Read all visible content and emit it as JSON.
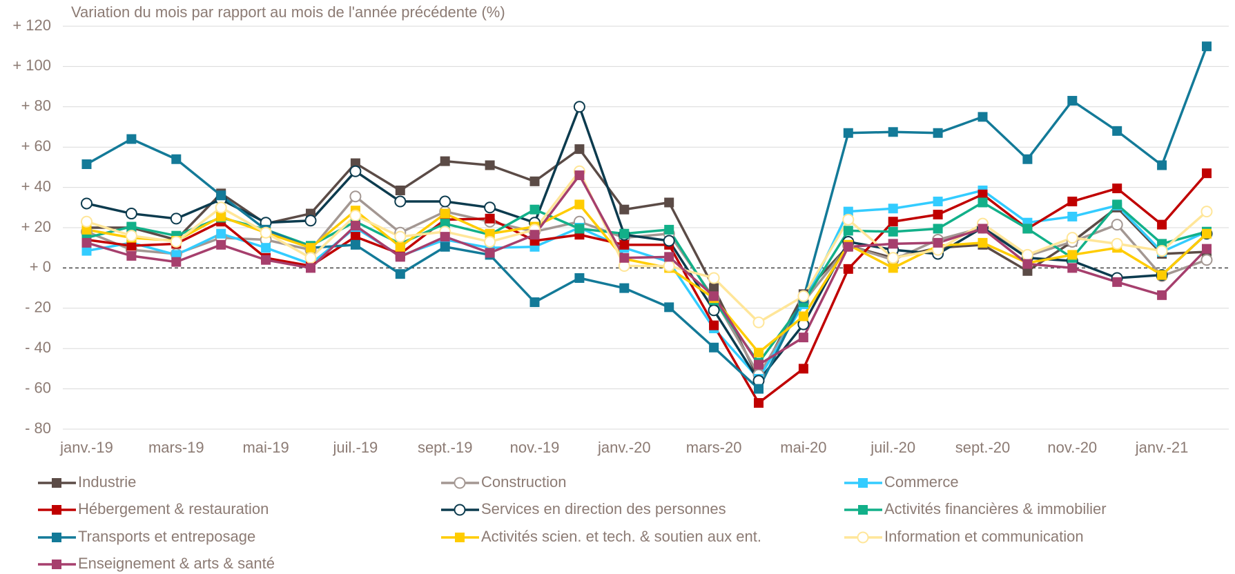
{
  "chart_data": {
    "type": "line",
    "title": "Variation du mois par rapport au mois de l'année précédente (%)",
    "categories": [
      "janv.-19",
      null,
      "mars-19",
      null,
      "mai-19",
      null,
      "juil.-19",
      null,
      "sept.-19",
      null,
      "nov.-19",
      null,
      "janv.-20",
      null,
      "mars-20",
      null,
      "mai-20",
      null,
      "juil.-20",
      null,
      "sept.-20",
      null,
      "nov.-20",
      null,
      "janv.-21",
      null
    ],
    "ylim": [
      -80,
      120
    ],
    "yticks": [
      {
        "value": -80,
        "label": "- 80"
      },
      {
        "value": -60,
        "label": "- 60"
      },
      {
        "value": -40,
        "label": "- 40"
      },
      {
        "value": -20,
        "label": "- 20"
      },
      {
        "value": 0,
        "label": "+ 0"
      },
      {
        "value": 20,
        "label": "+ 20"
      },
      {
        "value": 40,
        "label": "+ 40"
      },
      {
        "value": 60,
        "label": "+ 60"
      },
      {
        "value": 80,
        "label": "+ 80"
      },
      {
        "value": 100,
        "label": "+ 100"
      },
      {
        "value": 120,
        "label": "+ 120"
      }
    ],
    "grid": true,
    "legend": "bottom",
    "series": [
      {
        "name": "Industrie",
        "color": "#5b4b46",
        "marker": "square",
        "values": [
          20,
          20,
          14,
          37,
          22,
          27,
          52,
          38.5,
          53,
          51,
          43,
          59,
          29,
          32.5,
          -10,
          -55,
          -13,
          11,
          5,
          10,
          11.5,
          -1.5,
          13,
          30,
          7,
          8
        ]
      },
      {
        "name": "Construction",
        "color": "#a39792",
        "marker": "circle",
        "values": [
          18,
          9,
          7,
          15,
          14,
          9,
          35.5,
          17.5,
          28,
          23,
          18,
          23,
          15,
          17,
          -15,
          -53,
          -17,
          11,
          4,
          14,
          20,
          6,
          13,
          21.5,
          -4,
          4
        ]
      },
      {
        "name": "Commerce",
        "color": "#33ccff",
        "marker": "square",
        "values": [
          8.5,
          12.5,
          6.5,
          17,
          10,
          2,
          20,
          6,
          14,
          10,
          10.5,
          20,
          10,
          3,
          -30,
          -55,
          -18,
          28,
          29.5,
          33,
          38.5,
          22.5,
          25.5,
          31,
          8,
          18
        ]
      },
      {
        "name": "Hébergement & restauration",
        "color": "#c00000",
        "marker": "square",
        "values": [
          14,
          11,
          12,
          23,
          5,
          1,
          15.5,
          7,
          24,
          24.5,
          13.5,
          16.5,
          11.5,
          11.5,
          -28.5,
          -67,
          -50,
          -0.5,
          23,
          26.5,
          36.5,
          19.5,
          33,
          39.5,
          21.5,
          47
        ]
      },
      {
        "name": "Services en direction des personnes",
        "color": "#0c3b4e",
        "marker": "circle",
        "values": [
          32,
          27,
          24.5,
          34,
          22.5,
          23.5,
          48,
          33,
          33,
          30,
          22.5,
          80,
          16.5,
          13.5,
          -21,
          -56,
          -28,
          13,
          9,
          7,
          20,
          5,
          3.5,
          -5,
          -3.5,
          17
        ]
      },
      {
        "name": "Activités financières & immobilier",
        "color": "#12b089",
        "marker": "square",
        "values": [
          15,
          20.5,
          16,
          25,
          19,
          11,
          23,
          12,
          22,
          16.5,
          29,
          19.5,
          17,
          19,
          -16,
          -47,
          -17,
          18.5,
          18,
          19.5,
          32.5,
          19.5,
          5,
          31.5,
          12,
          18
        ]
      },
      {
        "name": "Transports et entreposage",
        "color": "#137a98",
        "marker": "square",
        "values": [
          51.5,
          64,
          54,
          36,
          19,
          10,
          11.5,
          -3,
          10.5,
          6.5,
          -17,
          -5,
          -10,
          -19.5,
          -39.5,
          -60,
          -15,
          67,
          67.5,
          67,
          75,
          54,
          83,
          68,
          51,
          110
        ]
      },
      {
        "name": "Activités scien. et tech. & soutien aux ent.",
        "color": "#ffcc00",
        "marker": "square",
        "values": [
          19,
          15,
          13.5,
          25.5,
          17.5,
          10,
          28.5,
          10.5,
          27,
          17,
          20.5,
          31.5,
          4.5,
          0,
          -15,
          -42,
          -24,
          11.5,
          0,
          11,
          12.5,
          2.5,
          6.5,
          10,
          -3.5,
          17
        ]
      },
      {
        "name": "Information et communication",
        "color": "#ffe699",
        "marker": "circle",
        "values": [
          23,
          16,
          13,
          30,
          17.5,
          5,
          26,
          15.5,
          18,
          13,
          19,
          48,
          1,
          1,
          -5,
          -27,
          -14,
          24,
          5,
          9,
          22,
          6.5,
          15,
          12,
          8.5,
          28
        ]
      },
      {
        "name": "Enseignement & arts & santé",
        "color": "#a63f6d",
        "marker": "square",
        "values": [
          12.5,
          6,
          3,
          11.5,
          4,
          0,
          21,
          5.5,
          15.5,
          7.5,
          16.5,
          46,
          5,
          5.5,
          -14,
          -48,
          -34.5,
          10.5,
          12,
          12.5,
          19.5,
          2,
          0,
          -7,
          -13.5,
          9.5
        ]
      }
    ]
  }
}
